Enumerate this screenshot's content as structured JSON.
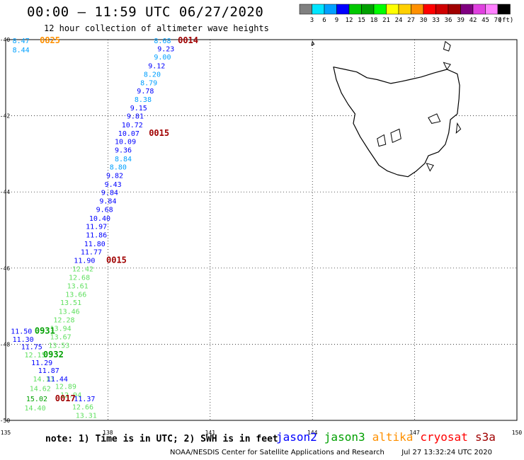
{
  "header": {
    "title": "00:00 – 11:59 UTC 06/27/2020",
    "subtitle": "12 hour collection of altimeter wave heights"
  },
  "colorbar": {
    "unit": "(ft)",
    "labels": [
      "3",
      "6",
      "9",
      "12",
      "15",
      "18",
      "21",
      "24",
      "27",
      "30",
      "33",
      "36",
      "39",
      "42",
      "45",
      "70"
    ],
    "colors": [
      "#808080",
      "#00e5ff",
      "#00a0ff",
      "#0000ff",
      "#00c800",
      "#00a000",
      "#00ff00",
      "#ffff00",
      "#ffd000",
      "#ff9000",
      "#ff0000",
      "#d00000",
      "#a00000",
      "#800080",
      "#e040e0",
      "#ff80ff",
      "#000000"
    ]
  },
  "map": {
    "lon_ticks": [
      "135",
      "138",
      "141",
      "144",
      "147",
      "150"
    ],
    "lat_ticks": [
      "-40",
      "-42",
      "-44",
      "-46",
      "-48",
      "-50"
    ],
    "lon_range": [
      135,
      150
    ],
    "lat_range": [
      -50,
      -40
    ],
    "grid": true
  },
  "labels": [
    {
      "t": "8.47",
      "c": "#00a0ff",
      "lon": 135.2,
      "lat": -40.02
    },
    {
      "t": "8.44",
      "c": "#00a0ff",
      "lon": 135.2,
      "lat": -40.26
    },
    {
      "t": "0825",
      "c": "#ff9000",
      "lon": 136.0,
      "lat": -40.02,
      "b": true
    },
    {
      "t": "8.68",
      "c": "#00a0ff",
      "lon": 139.35,
      "lat": -40.02
    },
    {
      "t": "0014",
      "c": "#a00000",
      "lon": 140.05,
      "lat": -40.02,
      "b": true
    },
    {
      "t": "9.23",
      "c": "#0000ff",
      "lon": 139.45,
      "lat": -40.23
    },
    {
      "t": "9.00",
      "c": "#00a0ff",
      "lon": 139.35,
      "lat": -40.45
    },
    {
      "t": "9.12",
      "c": "#0000ff",
      "lon": 139.18,
      "lat": -40.68
    },
    {
      "t": "8.20",
      "c": "#00a0ff",
      "lon": 139.05,
      "lat": -40.9
    },
    {
      "t": "8.79",
      "c": "#00a0ff",
      "lon": 138.95,
      "lat": -41.12
    },
    {
      "t": "9.78",
      "c": "#0000ff",
      "lon": 138.85,
      "lat": -41.34
    },
    {
      "t": "8.38",
      "c": "#00a0ff",
      "lon": 138.78,
      "lat": -41.56
    },
    {
      "t": "9.15",
      "c": "#0000ff",
      "lon": 138.65,
      "lat": -41.78
    },
    {
      "t": "9.81",
      "c": "#0000ff",
      "lon": 138.55,
      "lat": -42.0
    },
    {
      "t": "10.72",
      "c": "#0000ff",
      "lon": 138.4,
      "lat": -42.23
    },
    {
      "t": "10.07",
      "c": "#0000ff",
      "lon": 138.3,
      "lat": -42.45
    },
    {
      "t": "0015",
      "c": "#a00000",
      "lon": 139.2,
      "lat": -42.45,
      "b": true
    },
    {
      "t": "10.09",
      "c": "#0000ff",
      "lon": 138.2,
      "lat": -42.67
    },
    {
      "t": "9.36",
      "c": "#0000ff",
      "lon": 138.2,
      "lat": -42.89
    },
    {
      "t": "8.84",
      "c": "#00a0ff",
      "lon": 138.2,
      "lat": -43.12
    },
    {
      "t": "8.80",
      "c": "#00a0ff",
      "lon": 138.05,
      "lat": -43.34
    },
    {
      "t": "9.82",
      "c": "#0000ff",
      "lon": 137.95,
      "lat": -43.56
    },
    {
      "t": "9.43",
      "c": "#0000ff",
      "lon": 137.9,
      "lat": -43.79
    },
    {
      "t": "9.84",
      "c": "#0000ff",
      "lon": 137.8,
      "lat": -44.01
    },
    {
      "t": "9.84",
      "c": "#0000ff",
      "lon": 137.75,
      "lat": -44.23
    },
    {
      "t": "9.68",
      "c": "#0000ff",
      "lon": 137.65,
      "lat": -44.45
    },
    {
      "t": "10.40",
      "c": "#0000ff",
      "lon": 137.45,
      "lat": -44.68
    },
    {
      "t": "11.97",
      "c": "#0000ff",
      "lon": 137.35,
      "lat": -44.9
    },
    {
      "t": "11.86",
      "c": "#0000ff",
      "lon": 137.35,
      "lat": -45.12
    },
    {
      "t": "11.80",
      "c": "#0000ff",
      "lon": 137.3,
      "lat": -45.35
    },
    {
      "t": "11.77",
      "c": "#0000ff",
      "lon": 137.2,
      "lat": -45.57
    },
    {
      "t": "11.90",
      "c": "#0000ff",
      "lon": 137.0,
      "lat": -45.79
    },
    {
      "t": "0015",
      "c": "#a00000",
      "lon": 137.95,
      "lat": -45.79,
      "b": true
    },
    {
      "t": "12.42",
      "c": "#60e060",
      "lon": 136.95,
      "lat": -46.01
    },
    {
      "t": "12.68",
      "c": "#60e060",
      "lon": 136.85,
      "lat": -46.24
    },
    {
      "t": "13.61",
      "c": "#60e060",
      "lon": 136.8,
      "lat": -46.46
    },
    {
      "t": "13.66",
      "c": "#60e060",
      "lon": 136.75,
      "lat": -46.68
    },
    {
      "t": "13.51",
      "c": "#60e060",
      "lon": 136.6,
      "lat": -46.9
    },
    {
      "t": "13.46",
      "c": "#60e060",
      "lon": 136.55,
      "lat": -47.13
    },
    {
      "t": "12.28",
      "c": "#60e060",
      "lon": 136.4,
      "lat": -47.35
    },
    {
      "t": "13.94",
      "c": "#60e060",
      "lon": 136.3,
      "lat": -47.57
    },
    {
      "t": "11.50",
      "c": "#0000ff",
      "lon": 135.15,
      "lat": -47.65
    },
    {
      "t": "0931",
      "c": "#00a000",
      "lon": 135.85,
      "lat": -47.65,
      "b": true
    },
    {
      "t": "11.30",
      "c": "#0000ff",
      "lon": 135.2,
      "lat": -47.86
    },
    {
      "t": "13.67",
      "c": "#60e060",
      "lon": 136.3,
      "lat": -47.8
    },
    {
      "t": "11.75",
      "c": "#0000ff",
      "lon": 135.45,
      "lat": -48.06
    },
    {
      "t": "13.53",
      "c": "#60e060",
      "lon": 136.25,
      "lat": -48.02
    },
    {
      "t": "12.15",
      "c": "#60e060",
      "lon": 135.55,
      "lat": -48.27
    },
    {
      "t": "0932",
      "c": "#00a000",
      "lon": 136.1,
      "lat": -48.27,
      "b": true
    },
    {
      "t": "11.29",
      "c": "#0000ff",
      "lon": 135.75,
      "lat": -48.48
    },
    {
      "t": "11.87",
      "c": "#0000ff",
      "lon": 135.95,
      "lat": -48.68
    },
    {
      "t": "14.13",
      "c": "#60e060",
      "lon": 135.8,
      "lat": -48.9
    },
    {
      "t": "11.44",
      "c": "#0000ff",
      "lon": 136.2,
      "lat": -48.9
    },
    {
      "t": "12.89",
      "c": "#60e060",
      "lon": 136.45,
      "lat": -49.1
    },
    {
      "t": "14.62",
      "c": "#60e060",
      "lon": 135.7,
      "lat": -49.15
    },
    {
      "t": "12.94",
      "c": "#60e060",
      "lon": 136.6,
      "lat": -49.32
    },
    {
      "t": "15.02",
      "c": "#00a000",
      "lon": 135.6,
      "lat": -49.42
    },
    {
      "t": "0017",
      "c": "#a00000",
      "lon": 136.45,
      "lat": -49.42,
      "b": true
    },
    {
      "t": "11.37",
      "c": "#0000ff",
      "lon": 137.0,
      "lat": -49.42
    },
    {
      "t": "14.40",
      "c": "#60e060",
      "lon": 135.55,
      "lat": -49.67
    },
    {
      "t": "12.66",
      "c": "#60e060",
      "lon": 136.95,
      "lat": -49.64
    },
    {
      "t": "13.31",
      "c": "#60e060",
      "lon": 137.05,
      "lat": -49.86
    }
  ],
  "footer": {
    "note": "note: 1) Time is in UTC; 2) SWH is in feet",
    "missions": [
      {
        "name": "jason2",
        "color": "#0000ff"
      },
      {
        "name": "jason3",
        "color": "#00a000"
      },
      {
        "name": "altika",
        "color": "#ff9000"
      },
      {
        "name": "cryosat",
        "color": "#ff0000"
      },
      {
        "name": "s3a",
        "color": "#a00000"
      }
    ],
    "credit": "NOAA/NESDIS Center for Satellite Applications and Research",
    "timestamp": "Jul 27 13:32:24 UTC 2020"
  }
}
